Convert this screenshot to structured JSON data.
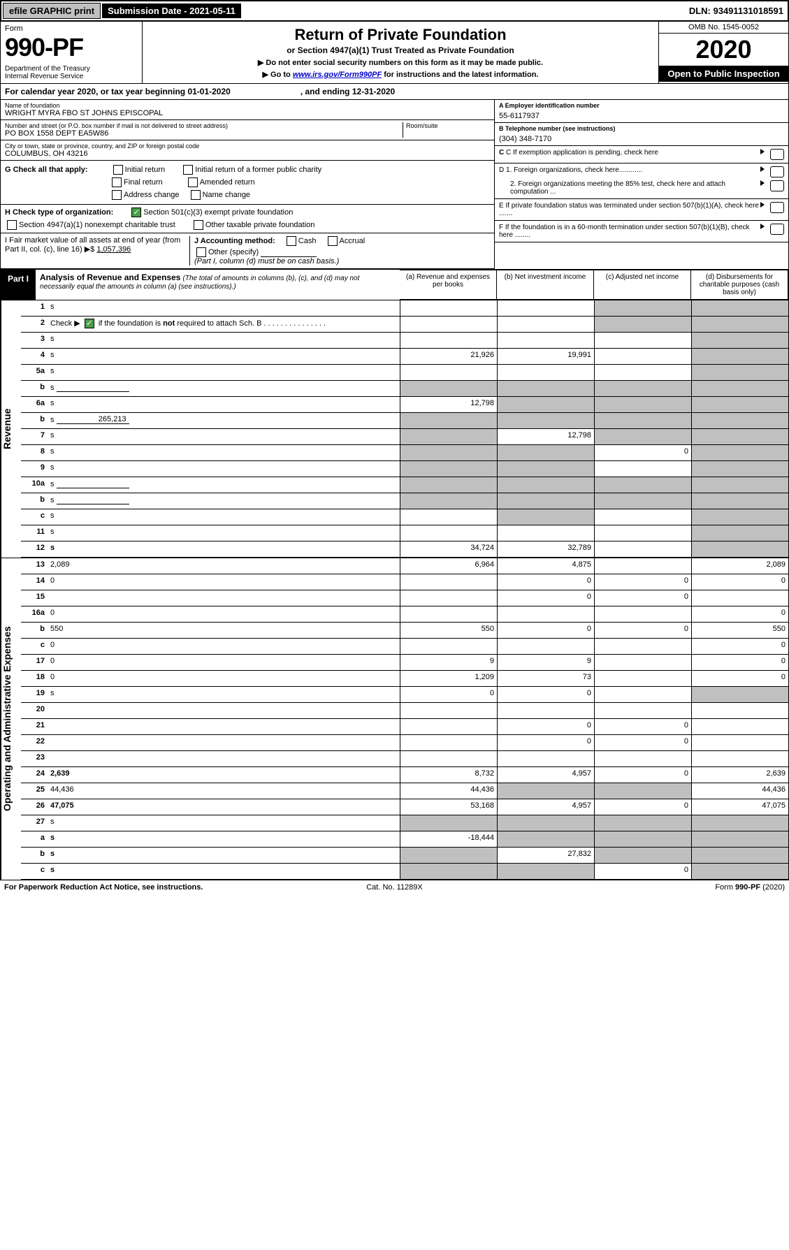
{
  "top": {
    "efile": "efile GRAPHIC print",
    "submission": "Submission Date - 2021-05-11",
    "dln": "DLN: 93491131018591"
  },
  "header": {
    "form_word": "Form",
    "form_num": "990-PF",
    "dept": "Department of the Treasury\nInternal Revenue Service",
    "title": "Return of Private Foundation",
    "subtitle": "or Section 4947(a)(1) Trust Treated as Private Foundation",
    "instr1": "▶ Do not enter social security numbers on this form as it may be made public.",
    "instr2_pre": "▶ Go to ",
    "instr2_link": "www.irs.gov/Form990PF",
    "instr2_post": " for instructions and the latest information.",
    "omb": "OMB No. 1545-0052",
    "year": "2020",
    "open": "Open to Public Inspection"
  },
  "cal_year": "For calendar year 2020, or tax year beginning 01-01-2020                              , and ending 12-31-2020",
  "name_label": "Name of foundation",
  "name": "WRIGHT MYRA FBO ST JOHNS EPISCOPAL",
  "a_label": "A Employer identification number",
  "a_val": "55-6117937",
  "addr_label": "Number and street (or P.O. box number if mail is not delivered to street address)",
  "room_label": "Room/suite",
  "addr": "PO BOX 1558 DEPT EA5W86",
  "b_label": "B Telephone number (see instructions)",
  "b_val": "(304) 348-7170",
  "city_label": "City or town, state or province, country, and ZIP or foreign postal code",
  "city": "COLUMBUS, OH  43216",
  "c_label": "C If exemption application is pending, check here",
  "g": {
    "label": "G Check all that apply:",
    "opts": [
      "Initial return",
      "Initial return of a former public charity",
      "Final return",
      "Amended return",
      "Address change",
      "Name change"
    ]
  },
  "d1": "D 1. Foreign organizations, check here............",
  "d2": "2. Foreign organizations meeting the 85% test, check here and attach computation ...",
  "h_label": "H Check type of organization:",
  "h_opts": [
    "Section 501(c)(3) exempt private foundation",
    "Section 4947(a)(1) nonexempt charitable trust",
    "Other taxable private foundation"
  ],
  "e_label": "E If private foundation status was terminated under section 507(b)(1)(A), check here .......",
  "i_label": "I Fair market value of all assets at end of year (from Part II, col. (c), line 16) ▶$",
  "i_val": "1,057,396",
  "j_label": "J Accounting method:",
  "j_cash": "Cash",
  "j_accrual": "Accrual",
  "j_other": "Other (specify)",
  "j_note": "(Part I, column (d) must be on cash basis.)",
  "f_label": "F If the foundation is in a 60-month termination under section 507(b)(1)(B), check here ........",
  "part1": {
    "label": "Part I",
    "title": "Analysis of Revenue and Expenses",
    "note": "(The total of amounts in columns (b), (c), and (d) may not necessarily equal the amounts in column (a) (see instructions).)",
    "col_a": "(a)   Revenue and expenses per books",
    "col_b": "(b)   Net investment income",
    "col_c": "(c)   Adjusted net income",
    "col_d": "(d)   Disbursements for charitable purposes (cash basis only)"
  },
  "revenue_label": "Revenue",
  "expenses_label": "Operating and Administrative Expenses",
  "rows": [
    {
      "n": "1",
      "d": "s",
      "a": "",
      "b": "",
      "c": "s"
    },
    {
      "n": "2",
      "d": "s",
      "a": "",
      "b": "",
      "c": "s",
      "checked": true
    },
    {
      "n": "3",
      "d": "s",
      "a": "",
      "b": "",
      "c": ""
    },
    {
      "n": "4",
      "d": "s",
      "a": "21,926",
      "b": "19,991",
      "c": ""
    },
    {
      "n": "5a",
      "d": "s",
      "a": "",
      "b": "",
      "c": ""
    },
    {
      "n": "b",
      "d": "s",
      "a": "s",
      "b": "s",
      "c": "s",
      "inline": true
    },
    {
      "n": "6a",
      "d": "s",
      "a": "12,798",
      "b": "s",
      "c": "s"
    },
    {
      "n": "b",
      "d": "s",
      "a": "s",
      "b": "s",
      "c": "s",
      "inline": true,
      "inline_val": "265,213"
    },
    {
      "n": "7",
      "d": "s",
      "a": "s",
      "b": "12,798",
      "c": "s"
    },
    {
      "n": "8",
      "d": "s",
      "a": "s",
      "b": "s",
      "c": "0"
    },
    {
      "n": "9",
      "d": "s",
      "a": "s",
      "b": "s",
      "c": ""
    },
    {
      "n": "10a",
      "d": "s",
      "a": "s",
      "b": "s",
      "c": "s",
      "inline": true
    },
    {
      "n": "b",
      "d": "s",
      "a": "s",
      "b": "s",
      "c": "s",
      "inline": true
    },
    {
      "n": "c",
      "d": "s",
      "a": "",
      "b": "s",
      "c": ""
    },
    {
      "n": "11",
      "d": "s",
      "a": "",
      "b": "",
      "c": ""
    },
    {
      "n": "12",
      "d": "s",
      "a": "34,724",
      "b": "32,789",
      "c": "",
      "bold": true
    }
  ],
  "exp_rows": [
    {
      "n": "13",
      "d": "2,089",
      "a": "6,964",
      "b": "4,875",
      "c": ""
    },
    {
      "n": "14",
      "d": "0",
      "a": "",
      "b": "0",
      "c": "0"
    },
    {
      "n": "15",
      "d": "",
      "a": "",
      "b": "0",
      "c": "0"
    },
    {
      "n": "16a",
      "d": "0",
      "a": "",
      "b": "",
      "c": ""
    },
    {
      "n": "b",
      "d": "550",
      "a": "550",
      "b": "0",
      "c": "0"
    },
    {
      "n": "c",
      "d": "0",
      "a": "",
      "b": "",
      "c": ""
    },
    {
      "n": "17",
      "d": "0",
      "a": "9",
      "b": "9",
      "c": ""
    },
    {
      "n": "18",
      "d": "0",
      "a": "1,209",
      "b": "73",
      "c": ""
    },
    {
      "n": "19",
      "d": "s",
      "a": "0",
      "b": "0",
      "c": ""
    },
    {
      "n": "20",
      "d": "",
      "a": "",
      "b": "",
      "c": ""
    },
    {
      "n": "21",
      "d": "",
      "a": "",
      "b": "0",
      "c": "0"
    },
    {
      "n": "22",
      "d": "",
      "a": "",
      "b": "0",
      "c": "0"
    },
    {
      "n": "23",
      "d": "",
      "a": "",
      "b": "",
      "c": ""
    },
    {
      "n": "24",
      "d": "2,639",
      "a": "8,732",
      "b": "4,957",
      "c": "0",
      "bold": true
    },
    {
      "n": "25",
      "d": "44,436",
      "a": "44,436",
      "b": "s",
      "c": "s"
    },
    {
      "n": "26",
      "d": "47,075",
      "a": "53,168",
      "b": "4,957",
      "c": "0",
      "bold": true
    },
    {
      "n": "27",
      "d": "s",
      "a": "s",
      "b": "s",
      "c": "s"
    },
    {
      "n": "a",
      "d": "s",
      "a": "-18,444",
      "b": "s",
      "c": "s",
      "bold": true
    },
    {
      "n": "b",
      "d": "s",
      "a": "s",
      "b": "27,832",
      "c": "s",
      "bold": true
    },
    {
      "n": "c",
      "d": "s",
      "a": "s",
      "b": "s",
      "c": "0",
      "bold": true
    }
  ],
  "footer": {
    "left": "For Paperwork Reduction Act Notice, see instructions.",
    "mid": "Cat. No. 11289X",
    "right": "Form 990-PF (2020)"
  }
}
